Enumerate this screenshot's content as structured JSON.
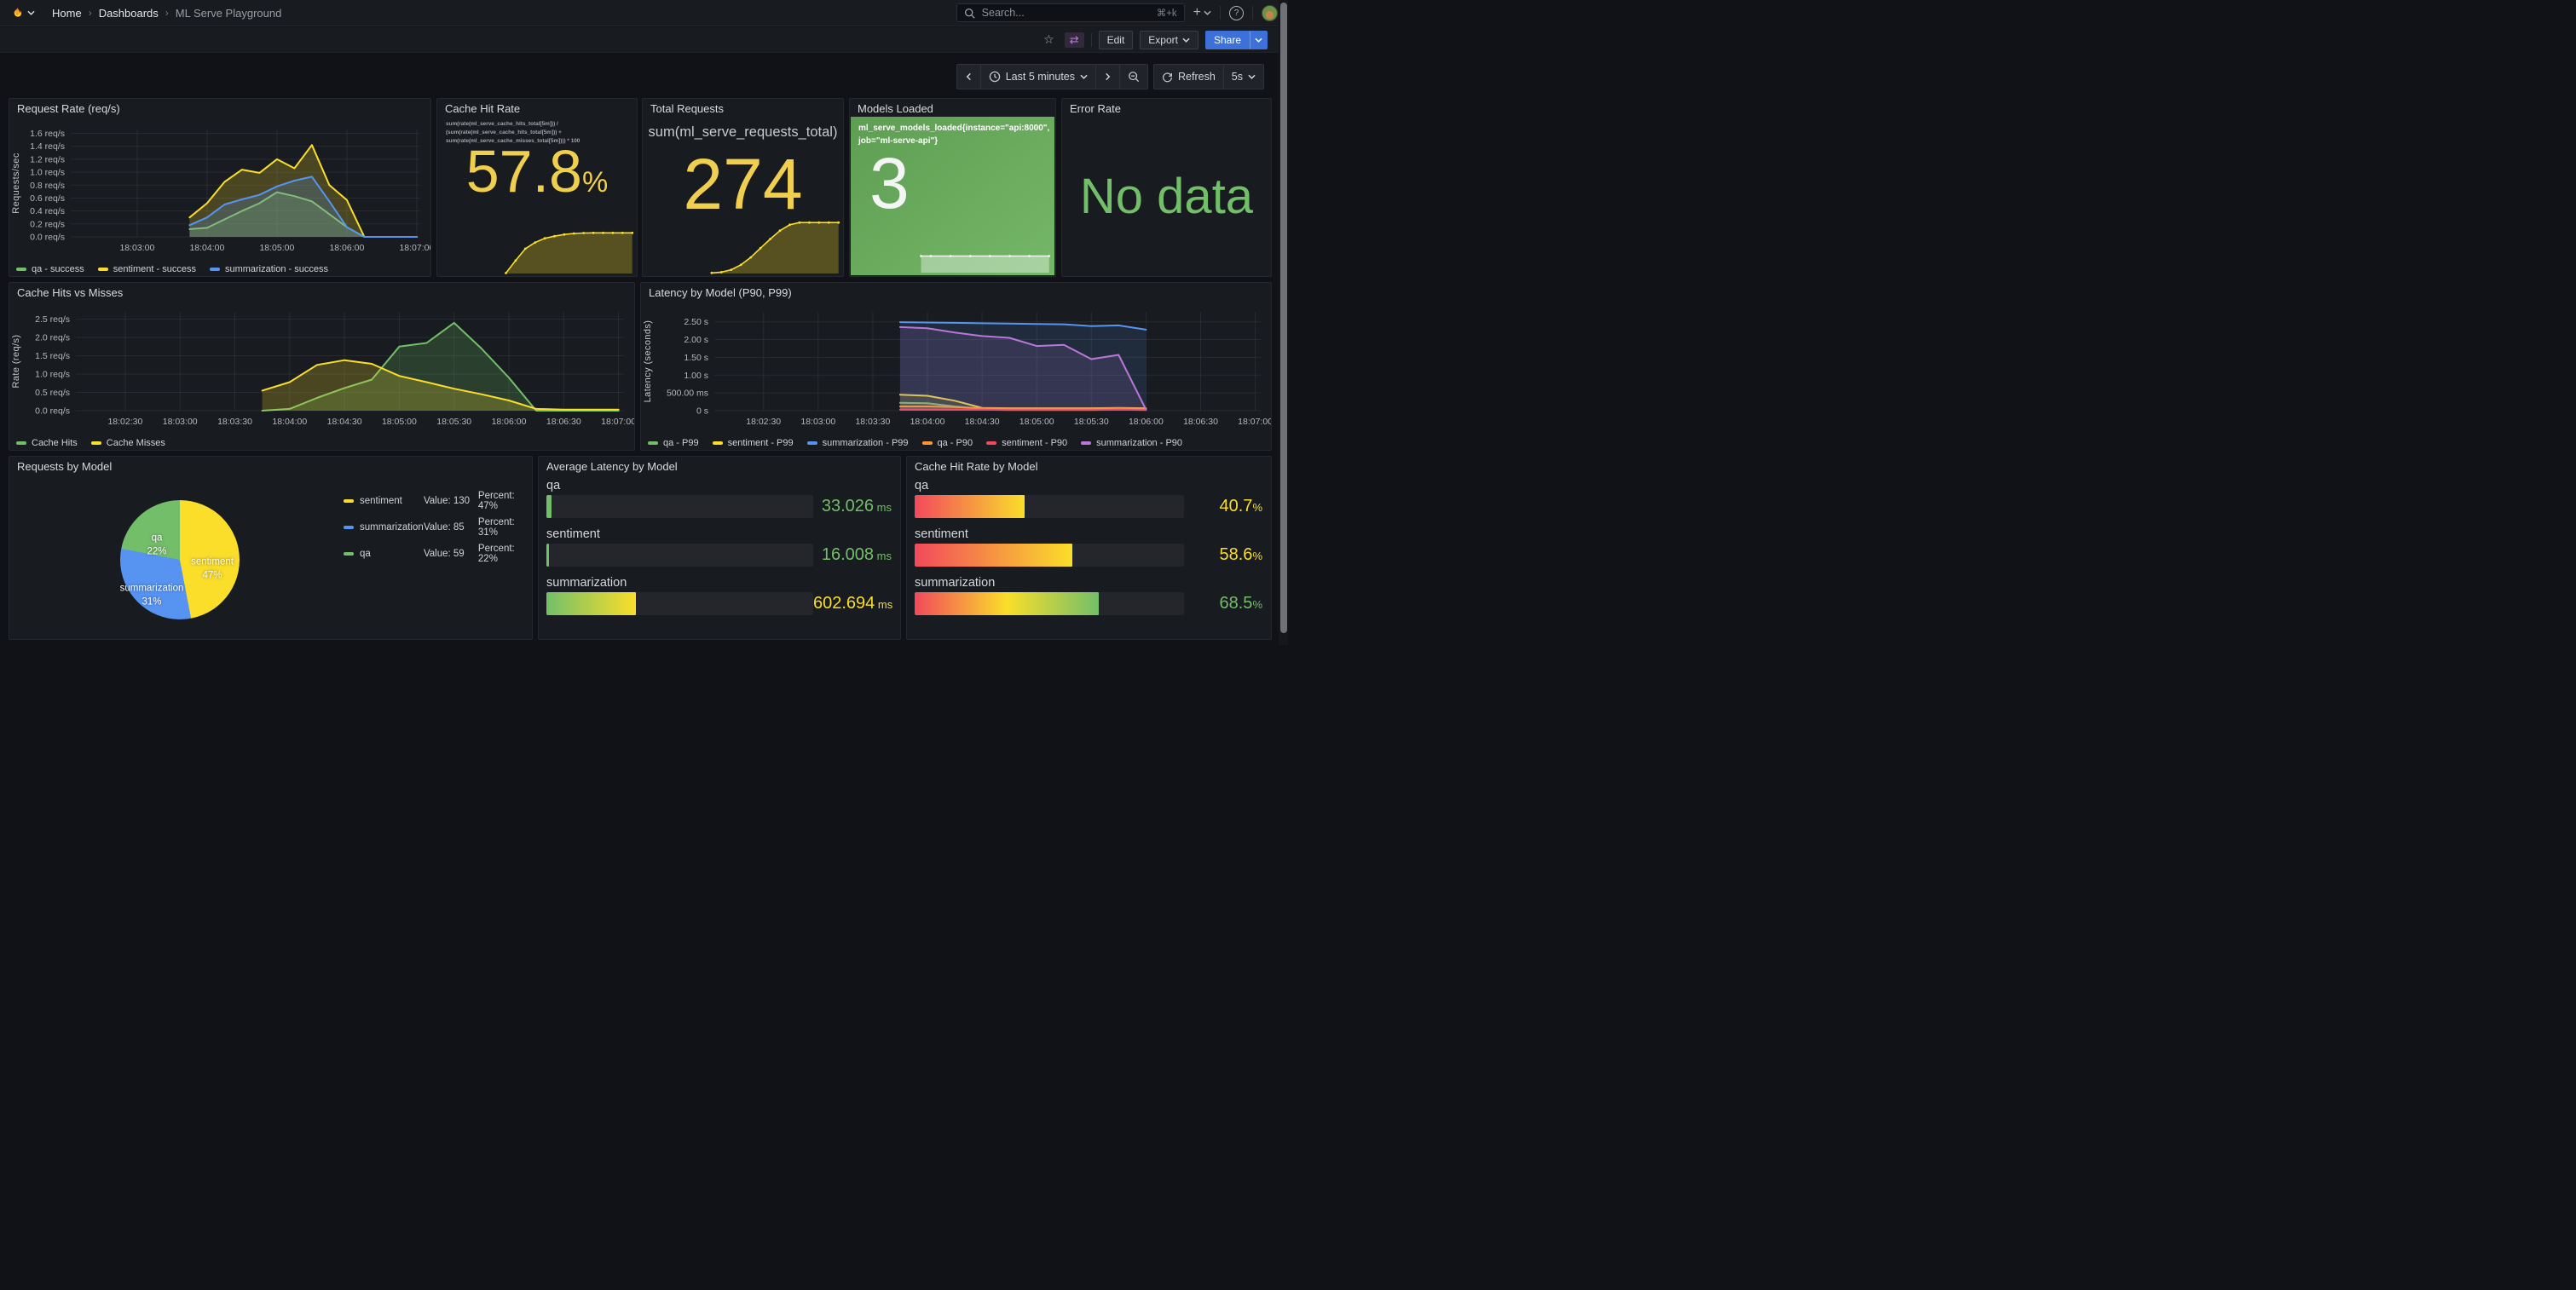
{
  "nav": {
    "breadcrumb": {
      "home": "Home",
      "dashboards": "Dashboards",
      "current": "ML Serve Playground"
    },
    "search": {
      "placeholder": "Search...",
      "shortcut": "⌘+k"
    }
  },
  "icons": {
    "sep": "›",
    "star": "☆",
    "swap": "⇄",
    "plus": "+",
    "help": "?"
  },
  "toolbar": {
    "edit": "Edit",
    "export": "Export",
    "share": "Share"
  },
  "time_controls": {
    "range": "Last 5 minutes",
    "refresh": "Refresh",
    "interval": "5s"
  },
  "panels": {
    "request_rate": {
      "title": "Request Rate (req/s)"
    },
    "cache_hit_rate": {
      "title": "Cache Hit Rate",
      "expr": "sum(rate(ml_serve_cache_hits_total[5m])) / (sum(rate(ml_serve_cache_hits_total[5m])) + sum(rate(ml_serve_cache_misses_total[5m]))) * 100",
      "value": "57.8",
      "unit": "%"
    },
    "total_requests": {
      "title": "Total Requests",
      "expr": "sum(ml_serve_requests_total)",
      "value": "274"
    },
    "models_loaded": {
      "title": "Models Loaded",
      "expr": "ml_serve_models_loaded{instance=\"api:8000\", job=\"ml-serve-api\"}",
      "value": "3"
    },
    "error_rate": {
      "title": "Error Rate",
      "message": "No data"
    },
    "cache_hits_misses": {
      "title": "Cache Hits vs Misses"
    },
    "latency_by_model": {
      "title": "Latency by Model (P90, P99)"
    },
    "requests_by_model": {
      "title": "Requests by Model"
    },
    "avg_latency": {
      "title": "Average Latency by Model"
    },
    "cache_hit_by_model": {
      "title": "Cache Hit Rate by Model"
    }
  },
  "chart_data": {
    "request_rate": {
      "type": "area",
      "ylabel": "Requests/sec",
      "x_start": "18:02:03",
      "x_end": "18:07:03",
      "x_ticks": [
        "18:03:00",
        "18:04:00",
        "18:05:00",
        "18:06:00",
        "18:07:00"
      ],
      "y_tick_values": [
        0,
        0.2,
        0.4,
        0.6,
        0.8,
        1.0,
        1.2,
        1.4,
        1.6
      ],
      "y_tick_labels": [
        "0.0 req/s",
        "0.2 req/s",
        "0.4 req/s",
        "0.6 req/s",
        "0.8 req/s",
        "1.0 req/s",
        "1.2 req/s",
        "1.4 req/s",
        "1.6 req/s"
      ],
      "y_max": 1.66,
      "times": [
        "18:03:45",
        "18:04:00",
        "18:04:15",
        "18:04:30",
        "18:04:45",
        "18:05:00",
        "18:05:15",
        "18:05:30",
        "18:05:45",
        "18:06:00",
        "18:06:15",
        "18:06:30",
        "18:06:45",
        "18:07:00"
      ],
      "series": [
        {
          "name": "qa - success",
          "color": "#73bf69",
          "values": [
            0.12,
            0.14,
            0.27,
            0.4,
            0.52,
            0.69,
            0.63,
            0.55,
            0.35,
            0.15,
            0,
            0,
            0,
            0
          ]
        },
        {
          "name": "sentiment - success",
          "color": "#fade2a",
          "values": [
            0.3,
            0.52,
            0.85,
            1.04,
            0.99,
            1.2,
            1.06,
            1.42,
            0.8,
            0.57,
            0,
            0,
            0,
            0
          ]
        },
        {
          "name": "summarization - success",
          "color": "#5794f2",
          "values": [
            0.18,
            0.3,
            0.5,
            0.58,
            0.65,
            0.78,
            0.87,
            0.93,
            0.55,
            0.15,
            0,
            0,
            0,
            0
          ]
        }
      ]
    },
    "cache_hits_vs_misses": {
      "type": "area",
      "ylabel": "Rate (req/s)",
      "x_start": "18:02:03",
      "x_end": "18:07:03",
      "x_ticks": [
        "18:02:30",
        "18:03:00",
        "18:03:30",
        "18:04:00",
        "18:04:30",
        "18:05:00",
        "18:05:30",
        "18:06:00",
        "18:06:30",
        "18:07:00"
      ],
      "y_tick_values": [
        0,
        0.5,
        1.0,
        1.5,
        2.0,
        2.5
      ],
      "y_tick_labels": [
        "0.0 req/s",
        "0.5 req/s",
        "1.0 req/s",
        "1.5 req/s",
        "2.0 req/s",
        "2.5 req/s"
      ],
      "y_max": 2.7,
      "times": [
        "18:03:45",
        "18:04:00",
        "18:04:15",
        "18:04:30",
        "18:04:45",
        "18:05:00",
        "18:05:15",
        "18:05:30",
        "18:05:45",
        "18:06:00",
        "18:06:15",
        "18:06:30",
        "18:06:45",
        "18:07:00"
      ],
      "series": [
        {
          "name": "Cache Hits",
          "color": "#73bf69",
          "values": [
            0,
            0.05,
            0.35,
            0.62,
            0.85,
            1.75,
            1.85,
            2.4,
            1.7,
            0.9,
            0,
            0,
            0,
            0
          ]
        },
        {
          "name": "Cache Misses",
          "color": "#fade2a",
          "values": [
            0.55,
            0.78,
            1.25,
            1.38,
            1.28,
            0.95,
            0.78,
            0.6,
            0.45,
            0.28,
            0.05,
            0.03,
            0.03,
            0.03
          ]
        }
      ]
    },
    "latency_by_model": {
      "type": "area",
      "ylabel": "Latency  (seconds)",
      "x_start": "18:02:03",
      "x_end": "18:07:03",
      "x_ticks": [
        "18:02:30",
        "18:03:00",
        "18:03:30",
        "18:04:00",
        "18:04:30",
        "18:05:00",
        "18:05:30",
        "18:06:00",
        "18:06:30",
        "18:07:00"
      ],
      "y_tick_values": [
        0,
        0.5,
        1.0,
        1.5,
        2.0,
        2.5
      ],
      "y_tick_labels": [
        "0 s",
        "500.00 ms",
        "1.00 s",
        "1.50 s",
        "2.00 s",
        "2.50 s"
      ],
      "y_max": 2.78,
      "times": [
        "18:03:45",
        "18:04:00",
        "18:04:15",
        "18:04:30",
        "18:04:45",
        "18:05:00",
        "18:05:15",
        "18:05:30",
        "18:05:45",
        "18:06:00"
      ],
      "series": [
        {
          "name": "qa - P99",
          "color": "#73bf69",
          "values": [
            0.22,
            0.21,
            0.12,
            0.05,
            0.05,
            0.05,
            0.05,
            0.05,
            0.06,
            0.05
          ]
        },
        {
          "name": "sentiment - P99",
          "color": "#fade2a",
          "values": [
            0.45,
            0.42,
            0.28,
            0.08,
            0.07,
            0.07,
            0.07,
            0.07,
            0.08,
            0.07
          ]
        },
        {
          "name": "summarization - P99",
          "color": "#5794f2",
          "values": [
            2.49,
            2.48,
            2.47,
            2.46,
            2.45,
            2.44,
            2.43,
            2.38,
            2.4,
            2.28
          ]
        },
        {
          "name": "qa - P90",
          "color": "#ff9830",
          "values": [
            0.12,
            0.12,
            0.1,
            0.07,
            0.06,
            0.06,
            0.06,
            0.06,
            0.07,
            0.06
          ]
        },
        {
          "name": "sentiment - P90",
          "color": "#f2495c",
          "values": [
            0.03,
            0.03,
            0.03,
            0.03,
            0.02,
            0.02,
            0.02,
            0.02,
            0.03,
            0.02
          ]
        },
        {
          "name": "summarization - P90",
          "color": "#b877d9",
          "values": [
            2.35,
            2.32,
            2.2,
            2.1,
            2.05,
            1.82,
            1.85,
            1.45,
            1.57,
            0.03
          ]
        }
      ]
    },
    "requests_by_model": {
      "type": "pie",
      "legend_value_label": "Value:",
      "legend_percent_label": "Percent:",
      "slices": [
        {
          "label": "sentiment",
          "value": 130,
          "percent": 47,
          "color": "#fade2a"
        },
        {
          "label": "summarization",
          "value": 85,
          "percent": 31,
          "color": "#5794f2"
        },
        {
          "label": "qa",
          "value": 59,
          "percent": 22,
          "color": "#73bf69"
        }
      ]
    },
    "avg_latency_by_model": {
      "type": "bargauge",
      "max": 1800,
      "rows": [
        {
          "label": "qa",
          "value": "33.026",
          "unit": " ms",
          "numeric": 33.026,
          "value_color": "#73bf69",
          "bar_colors": [
            "#73bf69"
          ]
        },
        {
          "label": "sentiment",
          "value": "16.008",
          "unit": " ms",
          "numeric": 16.008,
          "value_color": "#73bf69",
          "bar_colors": [
            "#73bf69"
          ]
        },
        {
          "label": "summarization",
          "value": "602.694",
          "unit": " ms",
          "numeric": 602.694,
          "value_color": "#fade2a",
          "bar_colors": [
            "#73bf69",
            "#fade2a"
          ]
        }
      ]
    },
    "cache_hit_rate_by_model": {
      "type": "bargauge",
      "max": 100,
      "rows": [
        {
          "label": "qa",
          "value": "40.7",
          "unit": "%",
          "numeric": 40.7,
          "value_color": "#fade2a",
          "bar_colors": [
            "#f2495c",
            "#fade2a"
          ]
        },
        {
          "label": "sentiment",
          "value": "58.6",
          "unit": "%",
          "numeric": 58.6,
          "value_color": "#fade2a",
          "bar_colors": [
            "#f2495c",
            "#fade2a"
          ]
        },
        {
          "label": "summarization",
          "value": "68.5",
          "unit": "%",
          "numeric": 68.5,
          "value_color": "#73bf69",
          "bar_colors": [
            "#f2495c",
            "#fade2a",
            "#73bf69"
          ]
        }
      ]
    },
    "cache_hit_rate_spark": {
      "color": "#fade2a",
      "y_max": 60,
      "times": [
        "18:03:45",
        "18:04:00",
        "18:04:15",
        "18:04:30",
        "18:04:45",
        "18:05:00",
        "18:05:15",
        "18:05:30",
        "18:05:45",
        "18:06:00",
        "18:06:15",
        "18:06:30",
        "18:06:45",
        "18:07:00"
      ],
      "values": [
        0,
        18,
        35,
        44,
        50,
        53,
        55.5,
        57,
        57.5,
        57.8,
        57.8,
        57.8,
        57.8,
        57.8
      ]
    },
    "total_requests_spark": {
      "color": "#fade2a",
      "y_max": 282,
      "times": [
        "18:03:45",
        "18:04:00",
        "18:04:15",
        "18:04:30",
        "18:04:45",
        "18:05:00",
        "18:05:15",
        "18:05:30",
        "18:05:45",
        "18:06:00",
        "18:06:15",
        "18:06:30",
        "18:06:45",
        "18:07:00"
      ],
      "values": [
        1,
        5,
        18,
        45,
        85,
        135,
        185,
        230,
        262,
        274,
        274,
        274,
        274,
        274
      ]
    },
    "models_loaded_spark": {
      "color": "rgba(255,255,255,0.85)",
      "fill": "rgba(255,255,255,0.38)",
      "y_max": 3,
      "times": [
        "18:03:45",
        "18:04:00",
        "18:04:30",
        "18:05:00",
        "18:05:30",
        "18:06:00",
        "18:06:30",
        "18:07:00"
      ],
      "values": [
        3,
        3,
        3,
        3,
        3,
        3,
        3,
        3
      ]
    }
  }
}
